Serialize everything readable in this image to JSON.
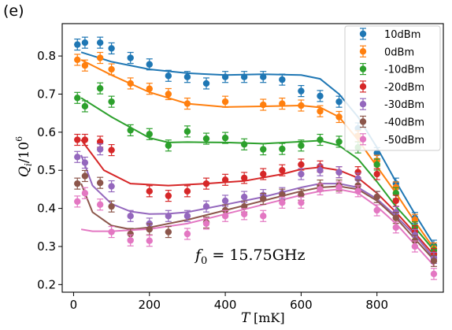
{
  "panel_label": "(e)",
  "colors": {
    "10dBm": "#1f77b4",
    "0dBm": "#ff7f0e",
    "-10dBm": "#2ca02c",
    "-20dBm": "#d62728",
    "-30dBm": "#9467bd",
    "-40dBm": "#8c564b",
    "-50dBm": "#e377c2"
  },
  "chart_data": {
    "type": "scatter",
    "xlabel": "T [mK]",
    "ylabel": "Q_i/10^6",
    "xlim": [
      -30,
      975
    ],
    "ylim": [
      0.18,
      0.885
    ],
    "xticks": [
      0,
      200,
      400,
      600,
      800
    ],
    "yticks": [
      0.2,
      0.3,
      0.4,
      0.5,
      0.6,
      0.7,
      0.8
    ],
    "grid": false,
    "legend_position": "top-right",
    "annotation": "f_0 = 15.75GHz",
    "series": [
      {
        "name": "10dBm",
        "points": [
          [
            10,
            0.83
          ],
          [
            30,
            0.835
          ],
          [
            70,
            0.835
          ],
          [
            100,
            0.82
          ],
          [
            150,
            0.795
          ],
          [
            200,
            0.778
          ],
          [
            250,
            0.748
          ],
          [
            300,
            0.745
          ],
          [
            350,
            0.728
          ],
          [
            400,
            0.745
          ],
          [
            450,
            0.745
          ],
          [
            500,
            0.745
          ],
          [
            550,
            0.738
          ],
          [
            600,
            0.708
          ],
          [
            650,
            0.695
          ],
          [
            700,
            0.68
          ],
          [
            750,
            0.61
          ],
          [
            800,
            0.545
          ],
          [
            850,
            0.465
          ],
          [
            900,
            0.375
          ],
          [
            950,
            0.302
          ]
        ],
        "fit": [
          [
            20,
            0.81
          ],
          [
            100,
            0.785
          ],
          [
            200,
            0.765
          ],
          [
            300,
            0.755
          ],
          [
            400,
            0.75
          ],
          [
            500,
            0.752
          ],
          [
            600,
            0.75
          ],
          [
            650,
            0.74
          ],
          [
            700,
            0.7
          ],
          [
            750,
            0.64
          ],
          [
            800,
            0.56
          ],
          [
            850,
            0.47
          ],
          [
            900,
            0.385
          ],
          [
            950,
            0.305
          ]
        ]
      },
      {
        "name": "0dBm",
        "points": [
          [
            10,
            0.79
          ],
          [
            30,
            0.775
          ],
          [
            70,
            0.795
          ],
          [
            100,
            0.765
          ],
          [
            150,
            0.728
          ],
          [
            200,
            0.714
          ],
          [
            250,
            0.7
          ],
          [
            300,
            0.675
          ],
          [
            400,
            0.68
          ],
          [
            500,
            0.672
          ],
          [
            550,
            0.675
          ],
          [
            600,
            0.67
          ],
          [
            650,
            0.655
          ],
          [
            700,
            0.64
          ],
          [
            750,
            0.59
          ],
          [
            800,
            0.525
          ],
          [
            850,
            0.455
          ],
          [
            900,
            0.37
          ],
          [
            950,
            0.295
          ]
        ],
        "fit": [
          [
            20,
            0.79
          ],
          [
            100,
            0.75
          ],
          [
            200,
            0.705
          ],
          [
            300,
            0.675
          ],
          [
            400,
            0.666
          ],
          [
            500,
            0.668
          ],
          [
            600,
            0.67
          ],
          [
            650,
            0.665
          ],
          [
            700,
            0.64
          ],
          [
            750,
            0.58
          ],
          [
            800,
            0.51
          ],
          [
            850,
            0.44
          ],
          [
            900,
            0.365
          ],
          [
            950,
            0.295
          ]
        ]
      },
      {
        "name": "-10dBm",
        "points": [
          [
            10,
            0.69
          ],
          [
            30,
            0.668
          ],
          [
            70,
            0.715
          ],
          [
            100,
            0.68
          ],
          [
            150,
            0.605
          ],
          [
            200,
            0.595
          ],
          [
            250,
            0.565
          ],
          [
            300,
            0.602
          ],
          [
            350,
            0.583
          ],
          [
            400,
            0.585
          ],
          [
            450,
            0.568
          ],
          [
            500,
            0.555
          ],
          [
            550,
            0.556
          ],
          [
            600,
            0.565
          ],
          [
            650,
            0.58
          ],
          [
            700,
            0.575
          ],
          [
            750,
            0.56
          ],
          [
            800,
            0.515
          ],
          [
            850,
            0.44
          ],
          [
            900,
            0.35
          ],
          [
            950,
            0.29
          ]
        ],
        "fit": [
          [
            20,
            0.69
          ],
          [
            100,
            0.64
          ],
          [
            200,
            0.585
          ],
          [
            250,
            0.573
          ],
          [
            300,
            0.574
          ],
          [
            400,
            0.573
          ],
          [
            500,
            0.57
          ],
          [
            600,
            0.575
          ],
          [
            650,
            0.578
          ],
          [
            700,
            0.565
          ],
          [
            750,
            0.53
          ],
          [
            800,
            0.47
          ],
          [
            850,
            0.405
          ],
          [
            900,
            0.35
          ],
          [
            950,
            0.29
          ]
        ]
      },
      {
        "name": "-20dBm",
        "points": [
          [
            10,
            0.58
          ],
          [
            30,
            0.58
          ],
          [
            70,
            0.575
          ],
          [
            100,
            0.553
          ],
          [
            200,
            0.445
          ],
          [
            250,
            0.433
          ],
          [
            300,
            0.445
          ],
          [
            350,
            0.465
          ],
          [
            400,
            0.475
          ],
          [
            450,
            0.48
          ],
          [
            500,
            0.49
          ],
          [
            550,
            0.5
          ],
          [
            600,
            0.515
          ],
          [
            650,
            0.51
          ],
          [
            700,
            0.495
          ],
          [
            750,
            0.495
          ],
          [
            800,
            0.49
          ],
          [
            850,
            0.42
          ],
          [
            900,
            0.34
          ],
          [
            950,
            0.28
          ]
        ],
        "fit": [
          [
            20,
            0.58
          ],
          [
            80,
            0.5
          ],
          [
            150,
            0.465
          ],
          [
            250,
            0.46
          ],
          [
            350,
            0.465
          ],
          [
            450,
            0.472
          ],
          [
            550,
            0.49
          ],
          [
            600,
            0.503
          ],
          [
            650,
            0.508
          ],
          [
            700,
            0.5
          ],
          [
            750,
            0.48
          ],
          [
            800,
            0.44
          ],
          [
            850,
            0.39
          ],
          [
            900,
            0.335
          ],
          [
            950,
            0.278
          ]
        ]
      },
      {
        "name": "-30dBm",
        "points": [
          [
            10,
            0.535
          ],
          [
            30,
            0.52
          ],
          [
            70,
            0.555
          ],
          [
            100,
            0.458
          ],
          [
            150,
            0.38
          ],
          [
            200,
            0.36
          ],
          [
            250,
            0.38
          ],
          [
            300,
            0.38
          ],
          [
            350,
            0.405
          ],
          [
            400,
            0.42
          ],
          [
            450,
            0.43
          ],
          [
            500,
            0.435
          ],
          [
            550,
            0.44
          ],
          [
            600,
            0.49
          ],
          [
            650,
            0.5
          ],
          [
            700,
            0.495
          ],
          [
            750,
            0.478
          ],
          [
            800,
            0.43
          ],
          [
            850,
            0.39
          ],
          [
            900,
            0.33
          ],
          [
            950,
            0.27
          ]
        ],
        "fit": [
          [
            20,
            0.54
          ],
          [
            50,
            0.46
          ],
          [
            100,
            0.412
          ],
          [
            150,
            0.392
          ],
          [
            200,
            0.385
          ],
          [
            250,
            0.386
          ],
          [
            300,
            0.39
          ],
          [
            400,
            0.41
          ],
          [
            500,
            0.43
          ],
          [
            600,
            0.455
          ],
          [
            650,
            0.465
          ],
          [
            700,
            0.465
          ],
          [
            750,
            0.455
          ],
          [
            800,
            0.425
          ],
          [
            850,
            0.38
          ],
          [
            900,
            0.33
          ],
          [
            950,
            0.27
          ]
        ]
      },
      {
        "name": "-40dBm",
        "points": [
          [
            10,
            0.465
          ],
          [
            30,
            0.485
          ],
          [
            70,
            0.467
          ],
          [
            100,
            0.405
          ],
          [
            150,
            0.333
          ],
          [
            200,
            0.345
          ],
          [
            250,
            0.338
          ],
          [
            350,
            0.363
          ],
          [
            400,
            0.395
          ],
          [
            450,
            0.405
          ],
          [
            500,
            0.425
          ],
          [
            550,
            0.436
          ],
          [
            600,
            0.436
          ],
          [
            650,
            0.46
          ],
          [
            700,
            0.46
          ],
          [
            750,
            0.46
          ],
          [
            800,
            0.43
          ],
          [
            850,
            0.375
          ],
          [
            900,
            0.315
          ],
          [
            950,
            0.262
          ]
        ],
        "fit": [
          [
            20,
            0.465
          ],
          [
            50,
            0.39
          ],
          [
            100,
            0.355
          ],
          [
            150,
            0.345
          ],
          [
            200,
            0.35
          ],
          [
            300,
            0.37
          ],
          [
            400,
            0.395
          ],
          [
            500,
            0.42
          ],
          [
            600,
            0.445
          ],
          [
            650,
            0.455
          ],
          [
            700,
            0.458
          ],
          [
            750,
            0.45
          ],
          [
            800,
            0.42
          ],
          [
            850,
            0.375
          ],
          [
            900,
            0.32
          ],
          [
            950,
            0.265
          ]
        ]
      },
      {
        "name": "-50dBm",
        "points": [
          [
            10,
            0.418
          ],
          [
            30,
            0.44
          ],
          [
            70,
            0.41
          ],
          [
            100,
            0.338
          ],
          [
            150,
            0.316
          ],
          [
            200,
            0.315
          ],
          [
            300,
            0.333
          ],
          [
            350,
            0.36
          ],
          [
            400,
            0.38
          ],
          [
            450,
            0.385
          ],
          [
            500,
            0.38
          ],
          [
            550,
            0.415
          ],
          [
            600,
            0.415
          ],
          [
            650,
            0.45
          ],
          [
            700,
            0.455
          ],
          [
            750,
            0.445
          ],
          [
            800,
            0.395
          ],
          [
            850,
            0.35
          ],
          [
            900,
            0.3
          ],
          [
            950,
            0.228
          ]
        ],
        "fit": [
          [
            20,
            0.345
          ],
          [
            50,
            0.34
          ],
          [
            100,
            0.34
          ],
          [
            150,
            0.343
          ],
          [
            200,
            0.346
          ],
          [
            300,
            0.36
          ],
          [
            400,
            0.385
          ],
          [
            500,
            0.41
          ],
          [
            600,
            0.435
          ],
          [
            650,
            0.445
          ],
          [
            700,
            0.45
          ],
          [
            750,
            0.44
          ],
          [
            800,
            0.405
          ],
          [
            850,
            0.36
          ],
          [
            900,
            0.305
          ],
          [
            950,
            0.25
          ]
        ]
      }
    ]
  }
}
